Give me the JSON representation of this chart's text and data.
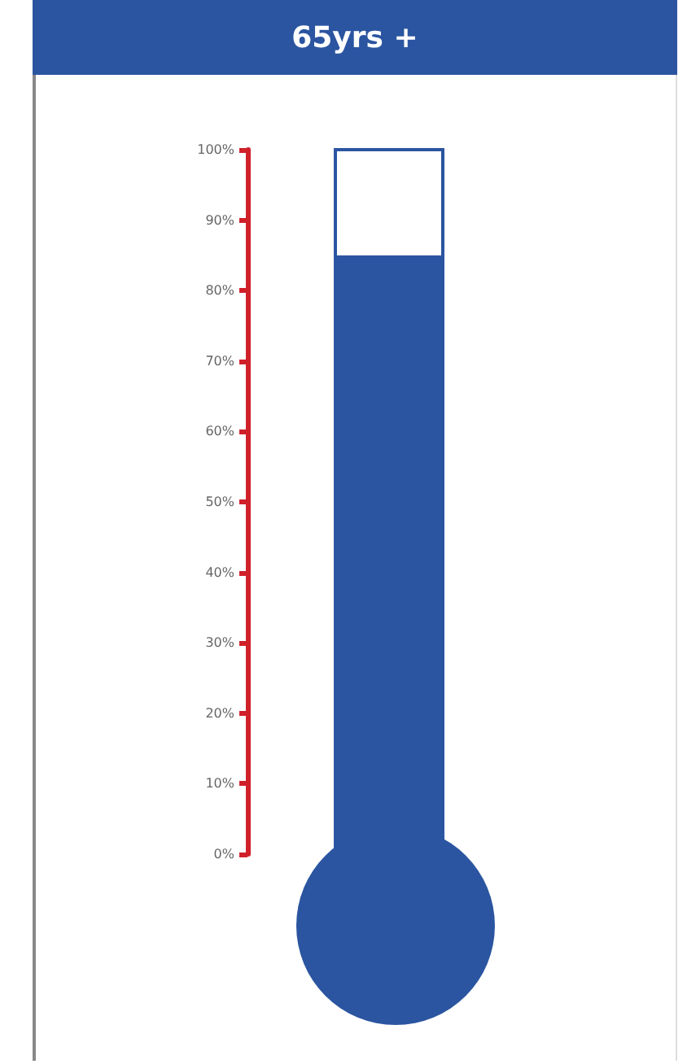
{
  "chart_data": {
    "type": "bar",
    "title": "65yrs +",
    "categories": [
      null
    ],
    "values": [
      85
    ],
    "color": "#2b55a0",
    "ylim": [
      0,
      100
    ],
    "yticks": [
      {
        "value": 0,
        "label": "0%"
      },
      {
        "value": 10,
        "label": "10%"
      },
      {
        "value": 20,
        "label": "20%"
      },
      {
        "value": 30,
        "label": "30%"
      },
      {
        "value": 40,
        "label": "40%"
      },
      {
        "value": 50,
        "label": "50%"
      },
      {
        "value": 60,
        "label": "60%"
      },
      {
        "value": 70,
        "label": "70%"
      },
      {
        "value": 80,
        "label": "80%"
      },
      {
        "value": 90,
        "label": "90%"
      },
      {
        "value": 100,
        "label": "100%"
      }
    ],
    "tick_labels": "y",
    "grid": false
  }
}
